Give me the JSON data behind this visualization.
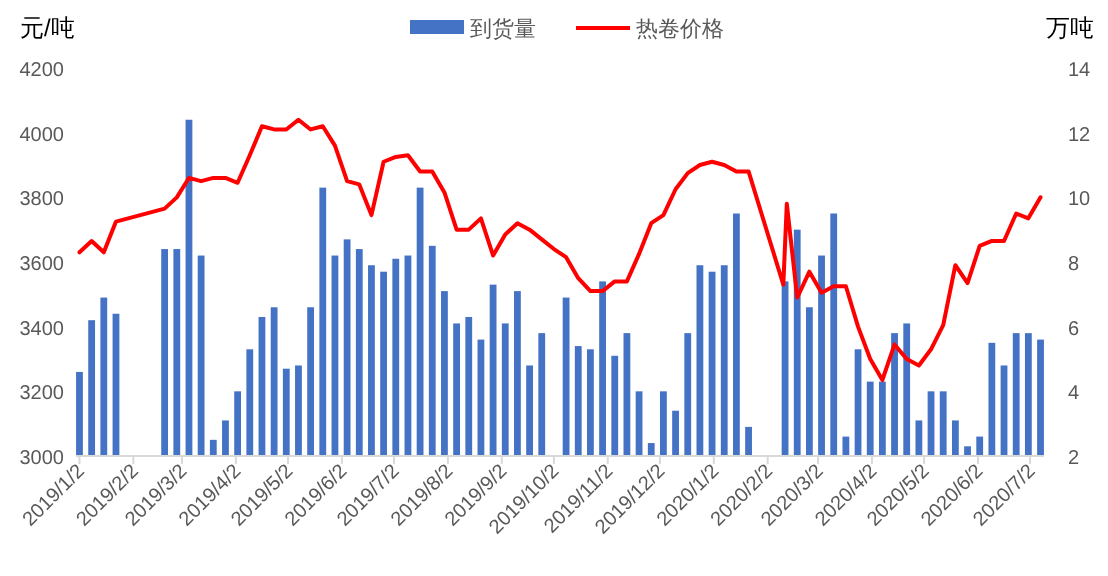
{
  "chart_data": {
    "type": "bar",
    "ylabel": "元/吨",
    "y2label": "万吨",
    "legend": "top",
    "grid": false,
    "xlim": [
      "2018-12-31",
      "2020-07-10"
    ],
    "xticks": [
      {
        "value": "2019-01-02",
        "label": "2019/1/2"
      },
      {
        "value": "2019-02-02",
        "label": "2019/2/2"
      },
      {
        "value": "2019-03-02",
        "label": "2019/3/2"
      },
      {
        "value": "2019-04-02",
        "label": "2019/4/2"
      },
      {
        "value": "2019-05-02",
        "label": "2019/5/2"
      },
      {
        "value": "2019-06-02",
        "label": "2019/6/2"
      },
      {
        "value": "2019-07-02",
        "label": "2019/7/2"
      },
      {
        "value": "2019-08-02",
        "label": "2019/8/2"
      },
      {
        "value": "2019-09-02",
        "label": "2019/9/2"
      },
      {
        "value": "2019-10-02",
        "label": "2019/10/2"
      },
      {
        "value": "2019-11-02",
        "label": "2019/11/2"
      },
      {
        "value": "2019-12-02",
        "label": "2019/12/2"
      },
      {
        "value": "2020-01-02",
        "label": "2020/1/2"
      },
      {
        "value": "2020-02-02",
        "label": "2020/2/2"
      },
      {
        "value": "2020-03-02",
        "label": "2020/3/2"
      },
      {
        "value": "2020-04-02",
        "label": "2020/4/2"
      },
      {
        "value": "2020-05-02",
        "label": "2020/5/2"
      },
      {
        "value": "2020-06-02",
        "label": "2020/6/2"
      },
      {
        "value": "2020-07-02",
        "label": "2020/7/2"
      }
    ],
    "ylim": [
      3000,
      4200
    ],
    "yticks": [
      3000,
      3200,
      3400,
      3600,
      3800,
      4000,
      4200
    ],
    "y2lim": [
      2,
      14
    ],
    "y2ticks": [
      2,
      4,
      6,
      8,
      10,
      12,
      14
    ],
    "series": [
      {
        "name": "到货量",
        "axis": "y2",
        "color": "#4472c4",
        "x": [
          "2019-01-02",
          "2019-01-09",
          "2019-01-16",
          "2019-01-23",
          "2019-02-20",
          "2019-02-27",
          "2019-03-06",
          "2019-03-13",
          "2019-03-20",
          "2019-03-27",
          "2019-04-03",
          "2019-04-10",
          "2019-04-17",
          "2019-04-24",
          "2019-05-01",
          "2019-05-08",
          "2019-05-15",
          "2019-05-22",
          "2019-05-29",
          "2019-06-05",
          "2019-06-12",
          "2019-06-19",
          "2019-06-26",
          "2019-07-03",
          "2019-07-10",
          "2019-07-17",
          "2019-07-24",
          "2019-07-31",
          "2019-08-07",
          "2019-08-14",
          "2019-08-21",
          "2019-08-28",
          "2019-09-04",
          "2019-09-11",
          "2019-09-18",
          "2019-09-25",
          "2019-10-09",
          "2019-10-16",
          "2019-10-23",
          "2019-10-30",
          "2019-11-06",
          "2019-11-13",
          "2019-11-20",
          "2019-11-27",
          "2019-12-04",
          "2019-12-11",
          "2019-12-18",
          "2019-12-25",
          "2020-01-01",
          "2020-01-08",
          "2020-01-15",
          "2020-01-22",
          "2020-02-12",
          "2020-02-19",
          "2020-02-26",
          "2020-03-04",
          "2020-03-11",
          "2020-03-18",
          "2020-03-25",
          "2020-04-01",
          "2020-04-08",
          "2020-04-15",
          "2020-04-22",
          "2020-04-29",
          "2020-05-06",
          "2020-05-13",
          "2020-05-20",
          "2020-05-27",
          "2020-06-03",
          "2020-06-10",
          "2020-06-17",
          "2020-06-24",
          "2020-07-01",
          "2020-07-08"
        ],
        "values": [
          4.6,
          6.2,
          6.9,
          6.4,
          8.4,
          8.4,
          12.4,
          8.2,
          2.5,
          3.1,
          4.0,
          5.3,
          6.3,
          6.6,
          4.7,
          4.8,
          6.6,
          10.3,
          8.2,
          8.7,
          8.4,
          7.9,
          7.7,
          8.1,
          8.2,
          10.3,
          8.5,
          7.1,
          6.1,
          6.3,
          5.6,
          7.3,
          6.1,
          7.1,
          4.8,
          5.8,
          6.9,
          5.4,
          5.3,
          7.4,
          5.1,
          5.8,
          4.0,
          2.4,
          4.0,
          3.4,
          5.8,
          7.9,
          7.7,
          7.9,
          9.5,
          2.9,
          7.4,
          9.0,
          6.6,
          8.2,
          9.5,
          2.6,
          5.3,
          4.3,
          4.3,
          5.8,
          6.1,
          3.1,
          4.0,
          4.0,
          3.1,
          2.3,
          2.6,
          5.5,
          4.8,
          5.8,
          5.8,
          5.6
        ]
      },
      {
        "name": "热卷价格",
        "type": "line",
        "axis": "y",
        "color": "#ff0000",
        "x": [
          "2019-01-02",
          "2019-01-09",
          "2019-01-16",
          "2019-01-23",
          "2019-02-20",
          "2019-02-27",
          "2019-03-06",
          "2019-03-13",
          "2019-03-20",
          "2019-03-27",
          "2019-04-03",
          "2019-04-10",
          "2019-04-17",
          "2019-04-24",
          "2019-05-01",
          "2019-05-08",
          "2019-05-15",
          "2019-05-22",
          "2019-05-29",
          "2019-06-05",
          "2019-06-12",
          "2019-06-19",
          "2019-06-26",
          "2019-07-03",
          "2019-07-10",
          "2019-07-17",
          "2019-07-24",
          "2019-07-31",
          "2019-08-07",
          "2019-08-14",
          "2019-08-21",
          "2019-08-28",
          "2019-09-04",
          "2019-09-11",
          "2019-09-18",
          "2019-09-25",
          "2019-10-02",
          "2019-10-09",
          "2019-10-16",
          "2019-10-23",
          "2019-10-30",
          "2019-11-06",
          "2019-11-13",
          "2019-11-20",
          "2019-11-27",
          "2019-12-04",
          "2019-12-11",
          "2019-12-18",
          "2019-12-25",
          "2020-01-01",
          "2020-01-08",
          "2020-01-15",
          "2020-01-22",
          "2020-02-11",
          "2020-02-13",
          "2020-02-19",
          "2020-02-26",
          "2020-03-04",
          "2020-03-11",
          "2020-03-18",
          "2020-03-25",
          "2020-04-01",
          "2020-04-08",
          "2020-04-15",
          "2020-04-22",
          "2020-04-29",
          "2020-05-06",
          "2020-05-13",
          "2020-05-20",
          "2020-05-27",
          "2020-06-03",
          "2020-06-10",
          "2020-06-17",
          "2020-06-24",
          "2020-07-01",
          "2020-07-08"
        ],
        "values": [
          3630,
          3665,
          3630,
          3725,
          3765,
          3800,
          3860,
          3850,
          3860,
          3860,
          3845,
          3930,
          4020,
          4010,
          4010,
          4040,
          4010,
          4020,
          3960,
          3850,
          3840,
          3745,
          3910,
          3925,
          3930,
          3880,
          3880,
          3815,
          3700,
          3700,
          3735,
          3620,
          3685,
          3720,
          3700,
          3670,
          3640,
          3615,
          3550,
          3510,
          3510,
          3540,
          3540,
          3625,
          3720,
          3745,
          3825,
          3875,
          3900,
          3910,
          3900,
          3880,
          3880,
          3530,
          3780,
          3490,
          3570,
          3505,
          3525,
          3525,
          3400,
          3300,
          3235,
          3345,
          3300,
          3280,
          3330,
          3405,
          3590,
          3535,
          3650,
          3665,
          3665,
          3750,
          3735,
          3800
        ]
      }
    ]
  }
}
